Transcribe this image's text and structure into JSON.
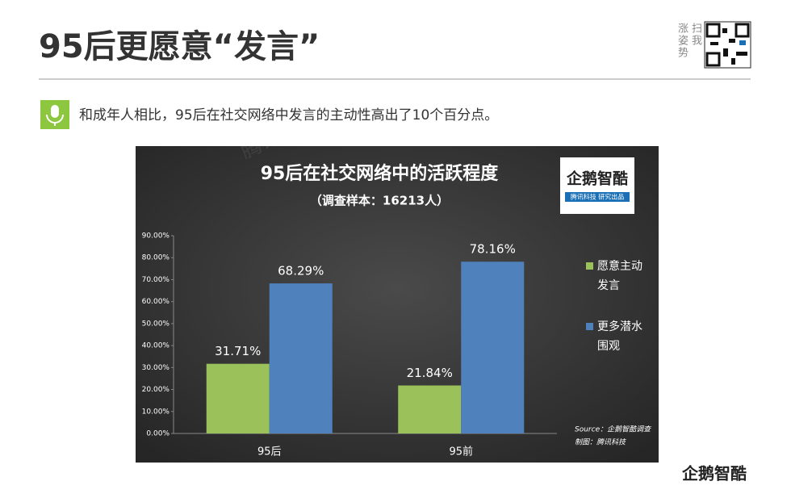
{
  "header": {
    "title": "95后更愿意“发言”",
    "qr_caption": [
      "扫我",
      "涨姿势"
    ],
    "subtitle": "和成年人相比，95后在社交网络中发言的主动性高出了10个百分点。"
  },
  "chart_data": {
    "type": "bar",
    "title": "95后在社交网络中的活跃程度",
    "subtitle": "（调查样本：16213人）",
    "categories": [
      "95后",
      "95前"
    ],
    "series": [
      {
        "name": "愿意主动发言",
        "color": "#9bc25a",
        "values": [
          31.71,
          21.84
        ],
        "value_labels": [
          "31.71%",
          "21.84%"
        ]
      },
      {
        "name": "更多潜水围观",
        "color": "#4f81bd",
        "values": [
          68.29,
          78.16
        ],
        "value_labels": [
          "68.29%",
          "78.16%"
        ]
      }
    ],
    "ylim": [
      0,
      90
    ],
    "yticks": [
      {
        "value": 0,
        "label": "0.00%"
      },
      {
        "value": 10,
        "label": "10.00%"
      },
      {
        "value": 20,
        "label": "20.00%"
      },
      {
        "value": 30,
        "label": "30.00%"
      },
      {
        "value": 40,
        "label": "40.00%"
      },
      {
        "value": 50,
        "label": "50.00%"
      },
      {
        "value": 60,
        "label": "60.00%"
      },
      {
        "value": 70,
        "label": "70.00%"
      },
      {
        "value": 80,
        "label": "80.00%"
      },
      {
        "value": 90,
        "label": "90.00%"
      }
    ],
    "grid": false,
    "logo": {
      "name": "企鹅智酷",
      "tagline": "腾讯科技  研究出品"
    },
    "source": "Source：企鹅智酷调查",
    "credit": "制图：腾讯科技",
    "watermark": "腾讯科技"
  },
  "footer": {
    "logo": "企鹅智酷"
  }
}
